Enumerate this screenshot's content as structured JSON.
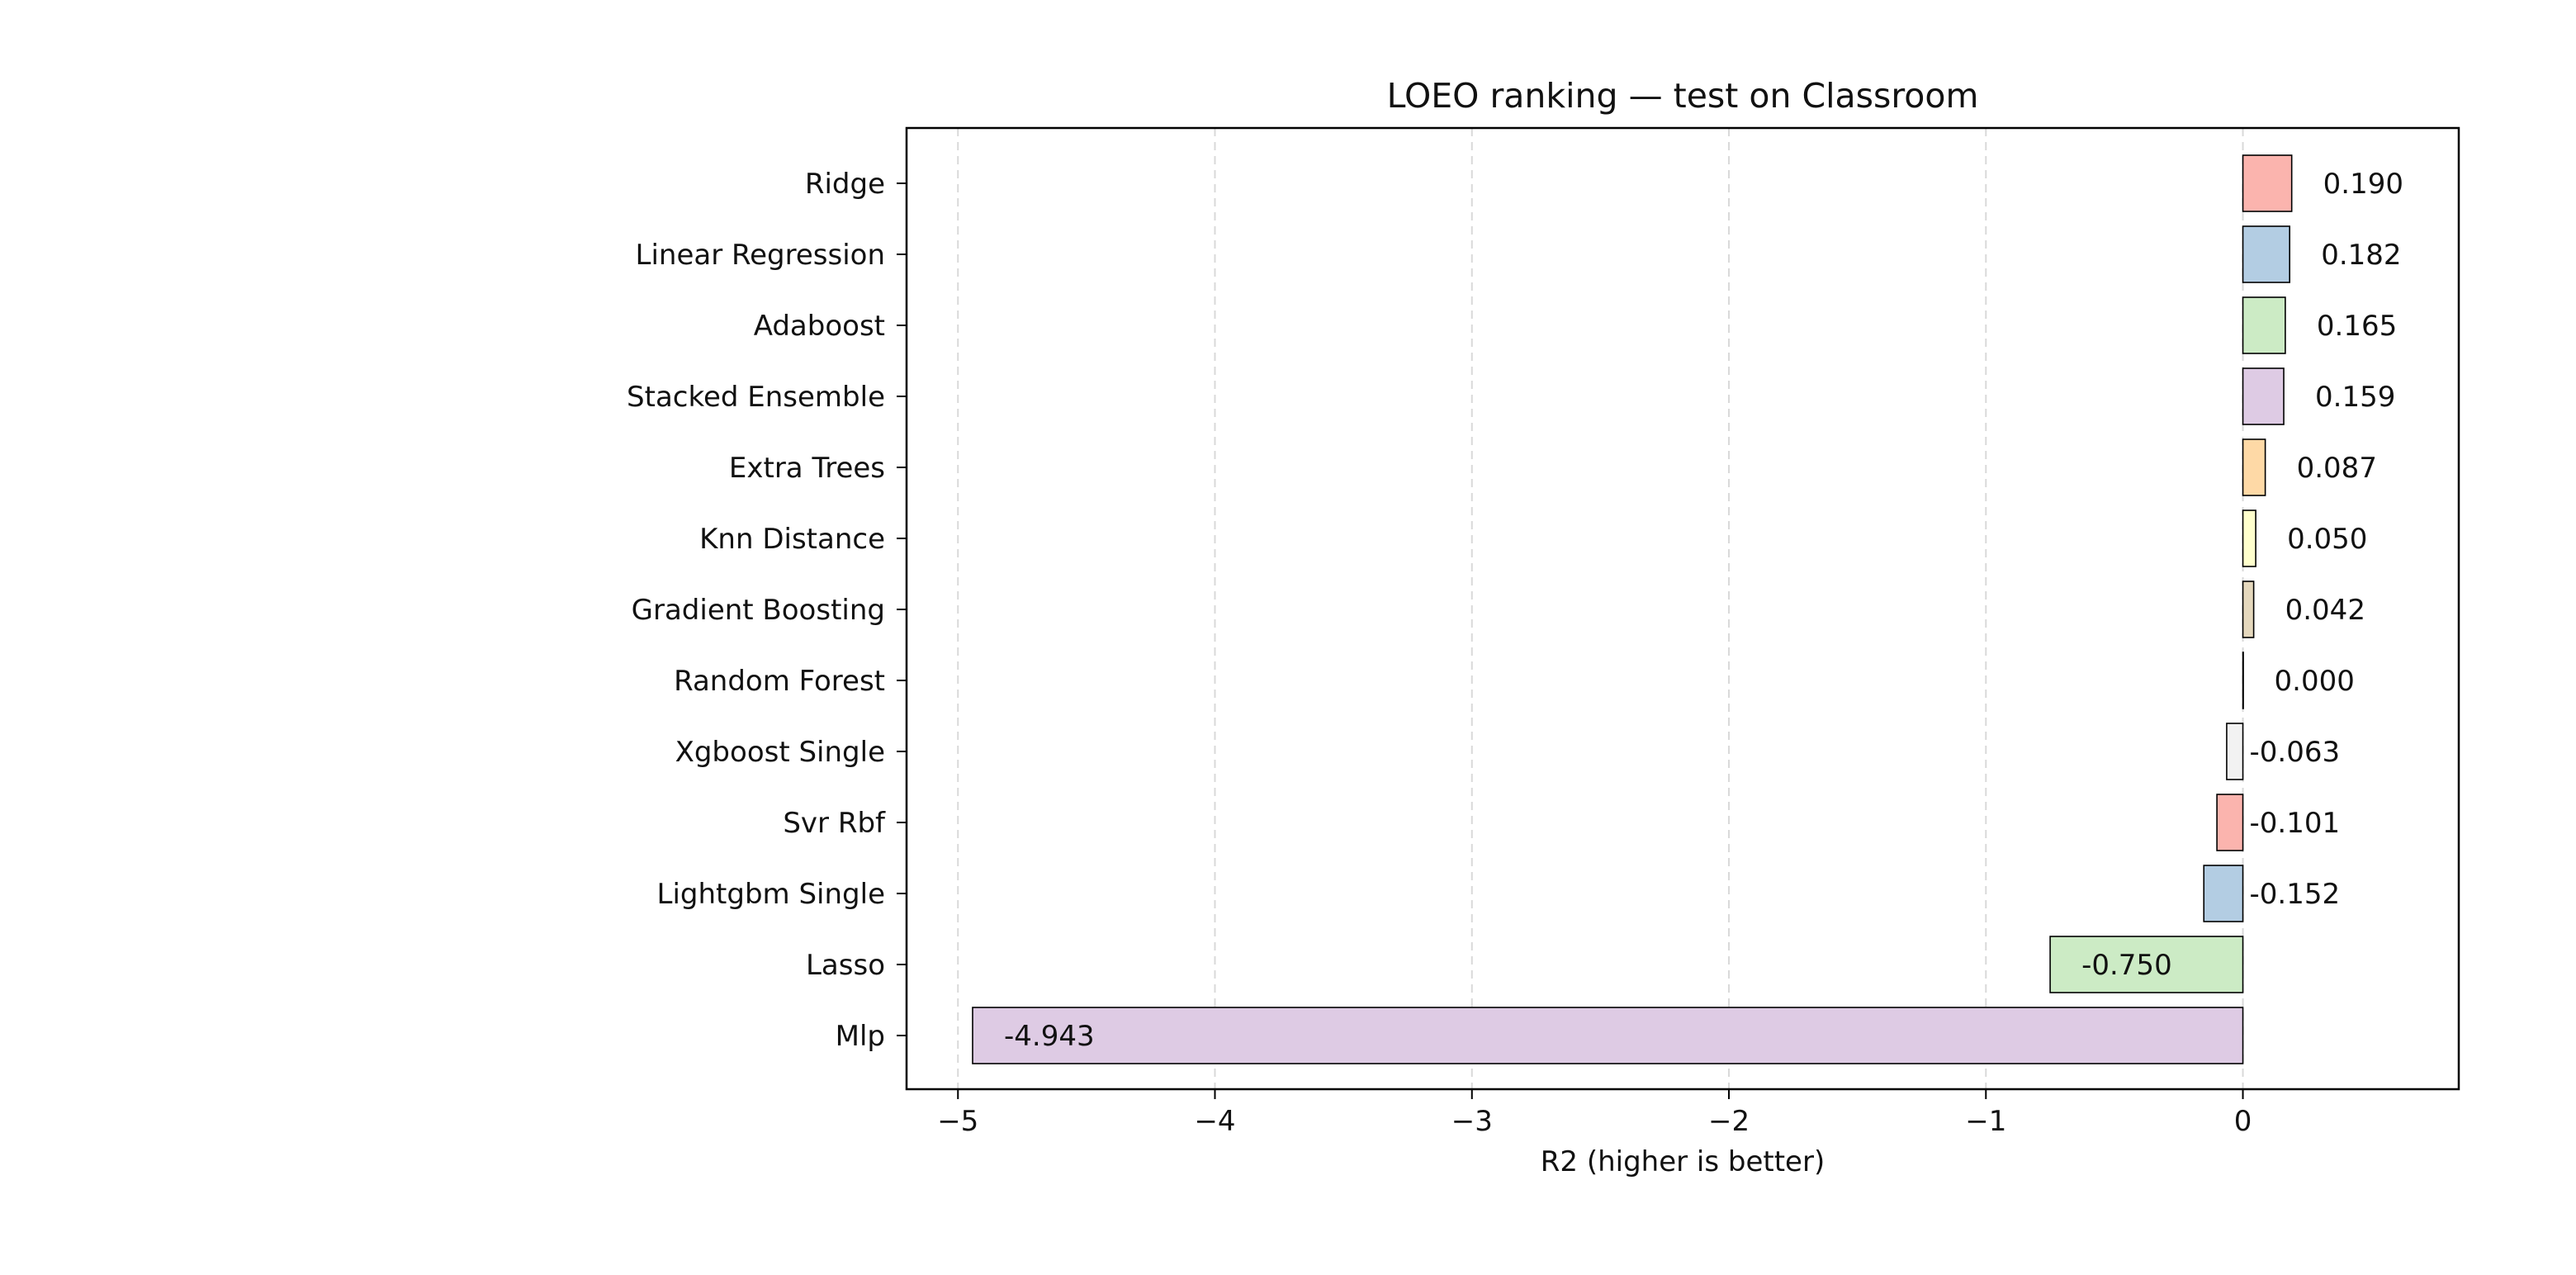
{
  "chart_data": {
    "type": "bar",
    "orientation": "horizontal",
    "title": "LOEO ranking — test on Classroom",
    "xlabel": "R2 (higher is better)",
    "ylabel": "",
    "xlim": [
      -5.2,
      0.84
    ],
    "xticks": [
      -5,
      -4,
      -3,
      -2,
      -1,
      0
    ],
    "xtick_labels": [
      "−5",
      "−4",
      "−3",
      "−2",
      "−1",
      "0"
    ],
    "grid": "x, dashed",
    "legend": "none",
    "categories": [
      "Ridge",
      "Linear Regression",
      "Adaboost",
      "Stacked Ensemble",
      "Extra Trees",
      "Knn Distance",
      "Gradient Boosting",
      "Random Forest",
      "Xgboost Single",
      "Svr Rbf",
      "Lightgbm Single",
      "Lasso",
      "Mlp"
    ],
    "values": [
      0.19,
      0.182,
      0.165,
      0.159,
      0.087,
      0.05,
      0.042,
      0.0,
      -0.063,
      -0.101,
      -0.152,
      -0.75,
      -4.943
    ],
    "value_labels": [
      "0.190",
      "0.182",
      "0.165",
      "0.159",
      "0.087",
      "0.050",
      "0.042",
      "0.000",
      "-0.063",
      "-0.101",
      "-0.152",
      "-0.750",
      "-4.943"
    ],
    "colors": [
      "#fbb4ae",
      "#b3cde3",
      "#ccebc5",
      "#decbe4",
      "#fed9a6",
      "#ffffcc",
      "#e5d8bd",
      "#fddaec",
      "#f2f2f2",
      "#fbb4ae",
      "#b3cde3",
      "#ccebc5",
      "#decbe4"
    ]
  }
}
